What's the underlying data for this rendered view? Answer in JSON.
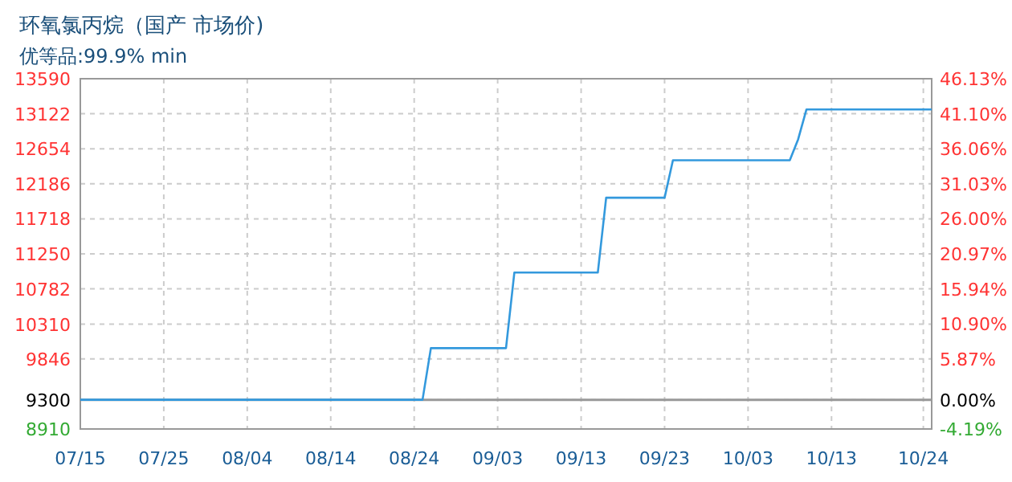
{
  "chart_data": {
    "type": "line",
    "title": "环氧氯丙烷（国产 市场价)",
    "subtitle": "优等品:99.9% min",
    "x": [
      "--07-15",
      "--08-25",
      "--08-26",
      "--09-04",
      "--09-05",
      "--09-15",
      "--09-16",
      "--09-23",
      "--09-24",
      "--10-08",
      "--10-09",
      "--10-10",
      "--10-25"
    ],
    "series": [
      {
        "color": "#3399dd",
        "values": [
          9300,
          9300,
          9990,
          9990,
          11000,
          11000,
          12000,
          12000,
          12500,
          12500,
          12780,
          13180,
          13180
        ]
      }
    ],
    "xlim": [
      "--07-15",
      "--10-25"
    ],
    "xticks": [
      {
        "value": "--07-15",
        "label": "07/15"
      },
      {
        "value": "--07-25",
        "label": "07/25"
      },
      {
        "value": "--08-04",
        "label": "08/04"
      },
      {
        "value": "--08-14",
        "label": "08/14"
      },
      {
        "value": "--08-24",
        "label": "08/24"
      },
      {
        "value": "--09-03",
        "label": "09/03"
      },
      {
        "value": "--09-13",
        "label": "09/13"
      },
      {
        "value": "--09-23",
        "label": "09/23"
      },
      {
        "value": "--10-03",
        "label": "10/03"
      },
      {
        "value": "--10-13",
        "label": "10/13"
      },
      {
        "value": "--10-24",
        "label": "10/24"
      }
    ],
    "ylim": [
      8910,
      13590
    ],
    "yticks": [
      8910,
      9300,
      9846,
      10310,
      10782,
      11250,
      11718,
      12186,
      12654,
      13122,
      13590
    ],
    "y2lim": [
      -4.19,
      46.13
    ],
    "y2ticks": [
      {
        "value": -4.19,
        "label": "-4.19%"
      },
      {
        "value": 0,
        "label": "0.00%"
      },
      {
        "value": 5.87,
        "label": "5.87%"
      },
      {
        "value": 10.9,
        "label": "10.90%"
      },
      {
        "value": 15.94,
        "label": "15.94%"
      },
      {
        "value": 20.97,
        "label": "20.97%"
      },
      {
        "value": 26.0,
        "label": "26.00%"
      },
      {
        "value": 31.03,
        "label": "31.03%"
      },
      {
        "value": 36.06,
        "label": "36.06%"
      },
      {
        "value": 41.1,
        "label": "41.10%"
      },
      {
        "value": 46.13,
        "label": "46.13%"
      }
    ],
    "ref_lines": [
      {
        "axis": "y",
        "value": 9300,
        "color": "#999999"
      }
    ],
    "grid": true,
    "marker": "none",
    "line_style": "solid"
  }
}
